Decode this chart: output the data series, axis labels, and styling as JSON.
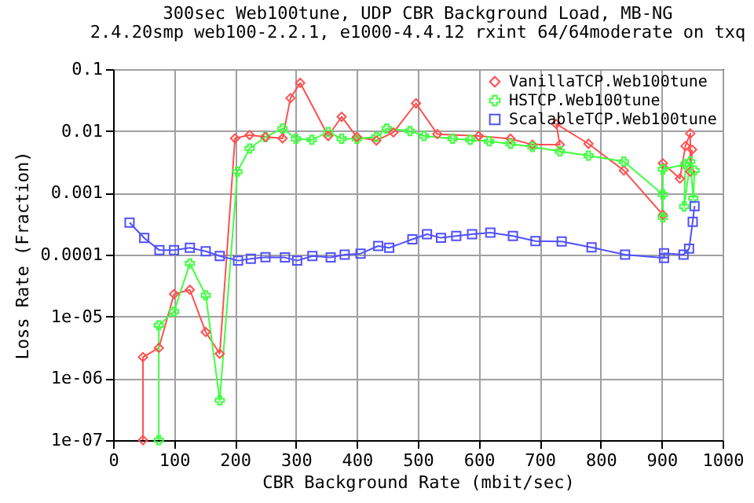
{
  "chart_data": {
    "type": "line",
    "title": "300sec Web100tune, UDP CBR Background Load, MB-NG",
    "subtitle": "2.4.20smp web100-2.2.1, e1000-4.4.12 rxint 64/64moderate on txq",
    "xlabel": "CBR Background Rate (mbit/sec)",
    "ylabel": "Loss Rate (Fraction)",
    "log": "y",
    "grid": true,
    "legend": "top right",
    "line_style": "solid",
    "xlim": [
      0,
      1000
    ],
    "xticks": [
      0,
      100,
      200,
      300,
      400,
      500,
      600,
      700,
      800,
      900,
      1000
    ],
    "ylim": [
      1e-07,
      0.1
    ],
    "yticks": [
      {
        "value": 1e-07,
        "label": "1e-07"
      },
      {
        "value": 1e-06,
        "label": "1e-06"
      },
      {
        "value": 1e-05,
        "label": "1e-05"
      },
      0.0001,
      0.001,
      0.01,
      0.1
    ],
    "series": [
      {
        "name": "VanillaTCP.Web100tune",
        "color": "#ff5050",
        "marker": "diamond",
        "x": [
          49,
          49,
          75,
          100,
          126,
          152,
          175,
          200,
          224,
          250,
          278,
          291,
          307,
          353,
          375,
          400,
          432,
          460,
          497,
          532,
          600,
          652,
          688,
          733,
          727,
          780,
          838,
          902,
          902,
          930,
          939,
          947,
          947,
          950
        ],
        "values": [
          1e-07,
          2.2e-06,
          3.1e-06,
          2.3e-05,
          2.7e-05,
          5.6e-06,
          2.5e-06,
          0.0076,
          0.0086,
          0.008,
          0.0076,
          0.034,
          0.06,
          0.0083,
          0.017,
          0.008,
          0.007,
          0.0095,
          0.028,
          0.0089,
          0.0083,
          0.0075,
          0.006,
          0.006,
          0.013,
          0.0062,
          0.0023,
          0.00044,
          0.003,
          0.0017,
          0.0057,
          0.0091,
          0.0022,
          0.005
        ]
      },
      {
        "name": "HSTCP.Web100tune",
        "color": "#40ff40",
        "marker": "cross",
        "x": [
          75,
          75,
          100,
          126,
          152,
          175,
          204,
          224,
          250,
          278,
          300,
          326,
          353,
          375,
          400,
          432,
          449,
          487,
          510,
          557,
          586,
          617,
          652,
          688,
          733,
          780,
          838,
          902,
          902,
          902,
          939,
          937,
          947,
          952,
          954
        ],
        "values": [
          1e-07,
          7.2e-06,
          1.2e-05,
          7.2e-05,
          2.2e-05,
          4.4e-07,
          0.0022,
          0.0052,
          0.008,
          0.011,
          0.0075,
          0.0072,
          0.0096,
          0.0075,
          0.0075,
          0.008,
          0.011,
          0.01,
          0.0083,
          0.0075,
          0.0072,
          0.0068,
          0.0062,
          0.0055,
          0.0047,
          0.004,
          0.0032,
          0.00094,
          0.0004,
          0.0024,
          0.0029,
          0.0006,
          0.0032,
          0.00082,
          0.0023
        ]
      },
      {
        "name": "ScalableTCP.Web100tune",
        "color": "#5050ff",
        "marker": "square",
        "x": [
          27,
          51,
          76,
          100,
          126,
          152,
          175,
          205,
          226,
          250,
          282,
          302,
          327,
          357,
          380,
          406,
          435,
          453,
          491,
          515,
          538,
          563,
          589,
          619,
          656,
          693,
          736,
          785,
          840,
          904,
          904,
          936,
          945,
          951,
          954
        ],
        "values": [
          0.00033,
          0.000186,
          0.000118,
          0.000118,
          0.000129,
          0.000113,
          9.5e-05,
          8e-05,
          8.6e-05,
          9.1e-05,
          9e-05,
          8e-05,
          9.5e-05,
          9e-05,
          0.0001,
          0.000104,
          0.000138,
          0.000129,
          0.000177,
          0.000214,
          0.000187,
          0.0002,
          0.000214,
          0.000227,
          0.0002,
          0.000166,
          0.000163,
          0.000131,
          0.0001,
          8.8e-05,
          0.000105,
          0.0001,
          0.000125,
          0.00034,
          0.00061
        ]
      }
    ]
  }
}
